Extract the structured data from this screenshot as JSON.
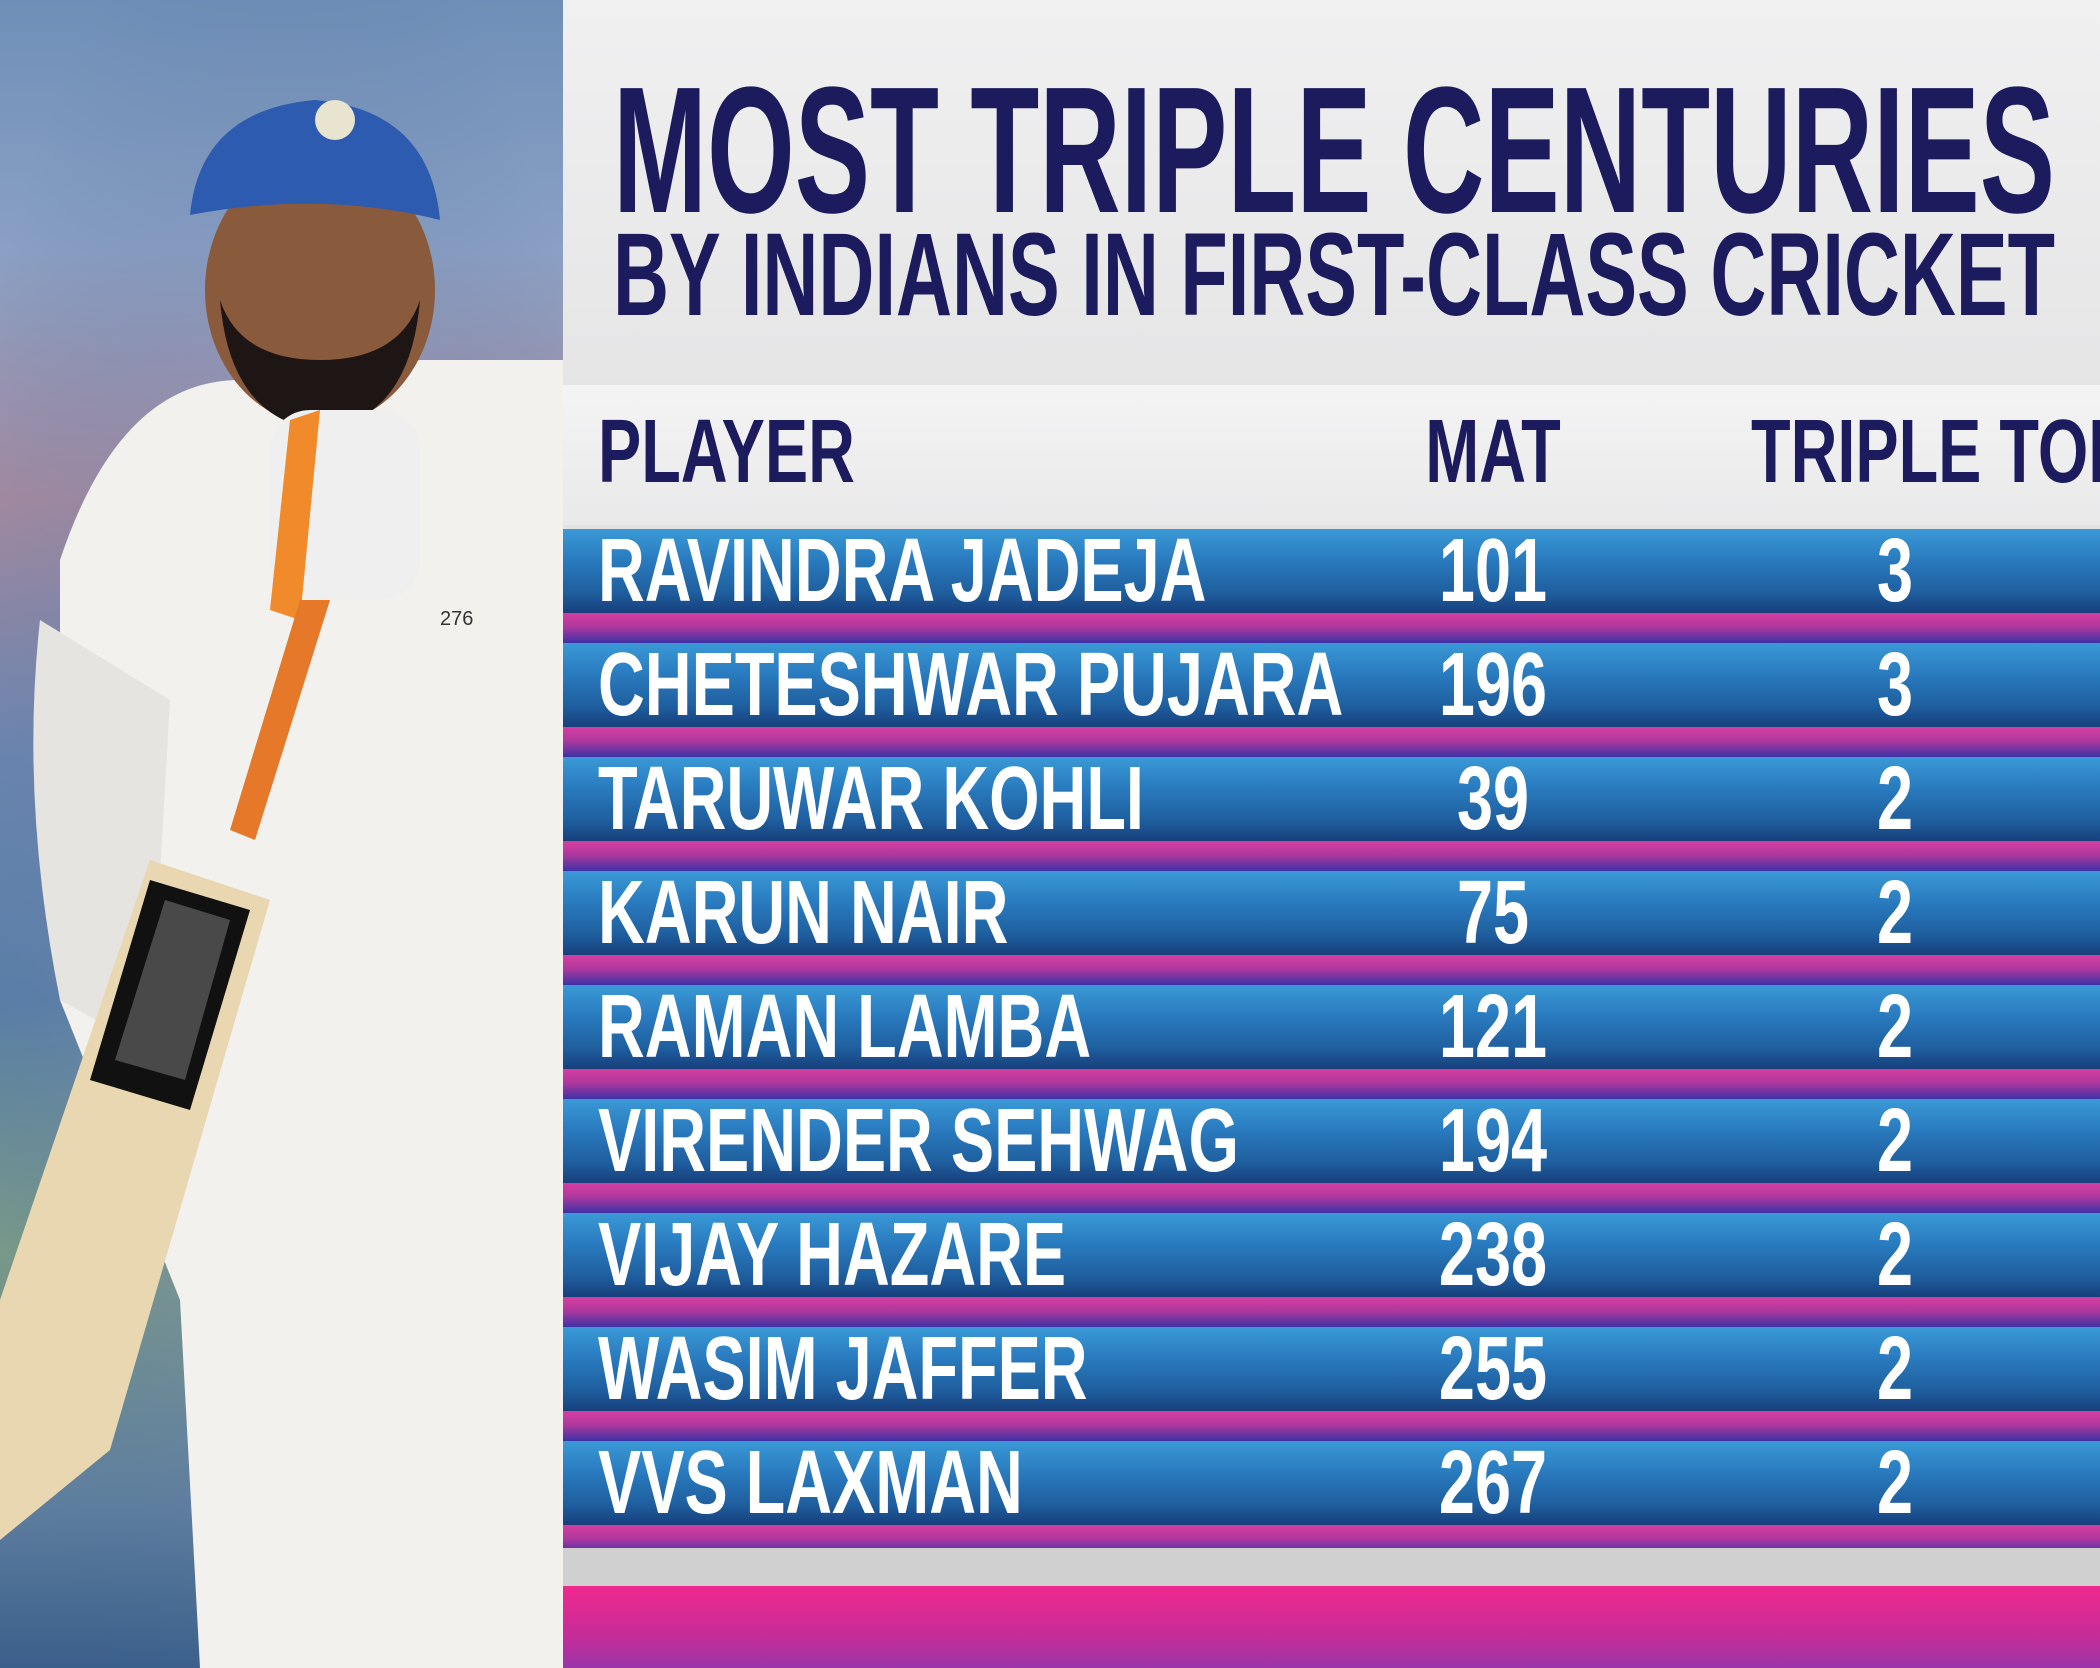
{
  "title": {
    "line1": "MOST TRIPLE CENTURIES",
    "line2": "BY INDIANS IN FIRST-CLASS CRICKET"
  },
  "table": {
    "headers": {
      "player": "PLAYER",
      "mat": "MAT",
      "triple": "TRIPLE TON"
    },
    "rows": [
      {
        "player": "RAVINDRA JADEJA",
        "mat": "101",
        "triple": "3"
      },
      {
        "player": "CHETESHWAR PUJARA",
        "mat": "196",
        "triple": "3"
      },
      {
        "player": "TARUWAR KOHLI",
        "mat": "39",
        "triple": "2"
      },
      {
        "player": "KARUN NAIR",
        "mat": "75",
        "triple": "2"
      },
      {
        "player": "RAMAN LAMBA",
        "mat": "121",
        "triple": "2"
      },
      {
        "player": "VIRENDER SEHWAG",
        "mat": "194",
        "triple": "2"
      },
      {
        "player": "VIJAY HAZARE",
        "mat": "238",
        "triple": "2"
      },
      {
        "player": "WASIM JAFFER",
        "mat": "255",
        "triple": "2"
      },
      {
        "player": "VVS LAXMAN",
        "mat": "267",
        "triple": "2"
      }
    ]
  },
  "photo": {
    "jersey_number": "276"
  },
  "colors": {
    "title": "#1b1b5e",
    "row_blue": "#2a7cc0",
    "row_pink": "#d63ea0",
    "bottom_pink": "#f0288f"
  }
}
